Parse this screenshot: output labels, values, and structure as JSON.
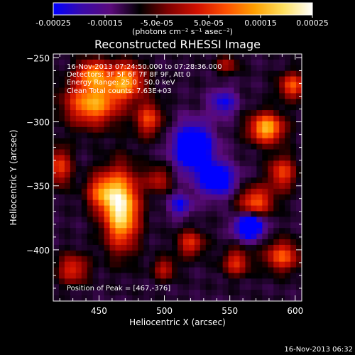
{
  "colorbar": {
    "tick_labels": [
      "-0.00025",
      "-0.00015",
      "-5.0e-05",
      "5.0e-05",
      "0.00015",
      "0.00025"
    ],
    "tick_values": [
      -0.00025,
      -0.00015,
      -5e-05,
      5e-05,
      0.00015,
      0.00025
    ],
    "range": [
      -0.00025,
      0.00025
    ],
    "units_label": "(photons cm⁻² s⁻¹ asec⁻²)",
    "colors": [
      "#0000ff",
      "#3a0aa8",
      "#5a0a7a",
      "#000000",
      "#800000",
      "#d01000",
      "#ff5000",
      "#ffa000",
      "#ffe060",
      "#ffffff"
    ]
  },
  "chart_data": {
    "type": "heatmap",
    "title": "Reconstructed RHESSI Image",
    "xlabel": "Heliocentric X (arcsec)",
    "ylabel": "Heliocentric Y (arcsec)",
    "xlim": [
      415,
      605
    ],
    "ylim": [
      -440,
      -247
    ],
    "x_ticks": [
      450,
      500,
      550,
      600
    ],
    "x_tick_labels": [
      "450",
      "500",
      "550",
      "600"
    ],
    "y_ticks": [
      -250,
      -300,
      -350,
      -400
    ],
    "y_tick_labels": [
      "−250",
      "−300",
      "−350",
      "−400"
    ],
    "annotations": [
      "16-Nov-2013 07:24:50.000 to 07:28:36.000",
      "Detectors: 3F 5F 6F 7F 8F 9F, Att 0",
      "Energy Range: 25.0 - 50.0 keV",
      "Clean     Total counts: 7.63E+03"
    ],
    "peak_label": "Position of Peak = [467,-376]",
    "peak": [
      467,
      -376
    ],
    "sources": [
      {
        "x": 467,
        "y": -368,
        "amp": 1.0,
        "sx": 9,
        "sy": 20
      },
      {
        "x": 452,
        "y": -355,
        "amp": 0.55,
        "sx": 8,
        "sy": 10
      },
      {
        "x": 445,
        "y": -285,
        "amp": 0.75,
        "sx": 14,
        "sy": 12
      },
      {
        "x": 470,
        "y": -268,
        "amp": 0.7,
        "sx": 10,
        "sy": 10
      },
      {
        "x": 445,
        "y": -262,
        "amp": 0.6,
        "sx": 8,
        "sy": 7
      },
      {
        "x": 488,
        "y": -298,
        "amp": 0.5,
        "sx": 7,
        "sy": 9
      },
      {
        "x": 578,
        "y": -305,
        "amp": 0.8,
        "sx": 9,
        "sy": 8
      },
      {
        "x": 598,
        "y": -272,
        "amp": 0.55,
        "sx": 7,
        "sy": 7
      },
      {
        "x": 570,
        "y": -362,
        "amp": 0.55,
        "sx": 9,
        "sy": 8
      },
      {
        "x": 590,
        "y": -340,
        "amp": 0.5,
        "sx": 7,
        "sy": 9
      },
      {
        "x": 555,
        "y": -410,
        "amp": 0.45,
        "sx": 7,
        "sy": 7
      },
      {
        "x": 590,
        "y": -405,
        "amp": 0.55,
        "sx": 9,
        "sy": 8
      },
      {
        "x": 520,
        "y": -395,
        "amp": 0.45,
        "sx": 7,
        "sy": 7
      },
      {
        "x": 430,
        "y": -415,
        "amp": 0.45,
        "sx": 8,
        "sy": 8
      },
      {
        "x": 420,
        "y": -335,
        "amp": 0.5,
        "sx": 6,
        "sy": 10
      },
      {
        "x": 495,
        "y": -345,
        "amp": 0.35,
        "sx": 7,
        "sy": 7
      },
      {
        "x": 500,
        "y": -415,
        "amp": 0.35,
        "sx": 6,
        "sy": 6
      },
      {
        "x": 548,
        "y": -255,
        "amp": 0.3,
        "sx": 6,
        "sy": 5
      }
    ],
    "minima": [
      {
        "x": 522,
        "y": -320,
        "amp": -0.8,
        "sx": 10,
        "sy": 12
      },
      {
        "x": 540,
        "y": -345,
        "amp": -0.6,
        "sx": 10,
        "sy": 9
      },
      {
        "x": 565,
        "y": -382,
        "amp": -0.9,
        "sx": 7,
        "sy": 6
      },
      {
        "x": 512,
        "y": -365,
        "amp": -0.4,
        "sx": 6,
        "sy": 6
      },
      {
        "x": 545,
        "y": -285,
        "amp": -0.4,
        "sx": 7,
        "sy": 7
      }
    ]
  },
  "footer": {
    "timestamp": "16-Nov-2013 06:32"
  }
}
